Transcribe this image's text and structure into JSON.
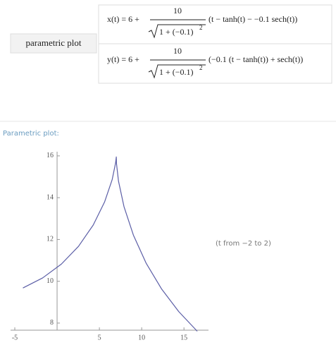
{
  "input": {
    "button": "parametric plot",
    "formulas": [
      {
        "lhs": "x(t) = 6 +",
        "numerator": "10",
        "radicand": "1 + (−0.1)",
        "exponent": "2",
        "rhs": "(t − tanh(t) − −0.1 sech(t))"
      },
      {
        "lhs": "y(t) = 6 +",
        "numerator": "10",
        "radicand": "1 + (−0.1)",
        "exponent": "2",
        "rhs": "(−0.1 (t − tanh(t)) + sech(t))"
      }
    ]
  },
  "pod_title": "Parametric plot:",
  "chart_data": {
    "type": "line",
    "color": "#5b5ea6",
    "x": [
      -4.04,
      -1.71,
      0.5,
      2.53,
      4.27,
      5.62,
      6.51,
      6.91,
      7.0,
      7.02,
      7.26,
      7.91,
      9.02,
      10.52,
      12.34,
      14.38,
      16.57
    ],
    "values": [
      9.68,
      10.16,
      10.82,
      11.67,
      12.69,
      13.8,
      14.86,
      15.65,
      15.95,
      15.64,
      14.79,
      13.57,
      12.21,
      10.87,
      9.64,
      8.55,
      7.61
    ],
    "xlim": [
      -5.5,
      17.9
    ],
    "ylim": [
      7.66,
      16.2
    ],
    "xticks": [
      -5,
      5,
      10,
      15
    ],
    "yticks": [
      8,
      10,
      12,
      14,
      16
    ],
    "annotation": "(t from −2 to 2)"
  }
}
